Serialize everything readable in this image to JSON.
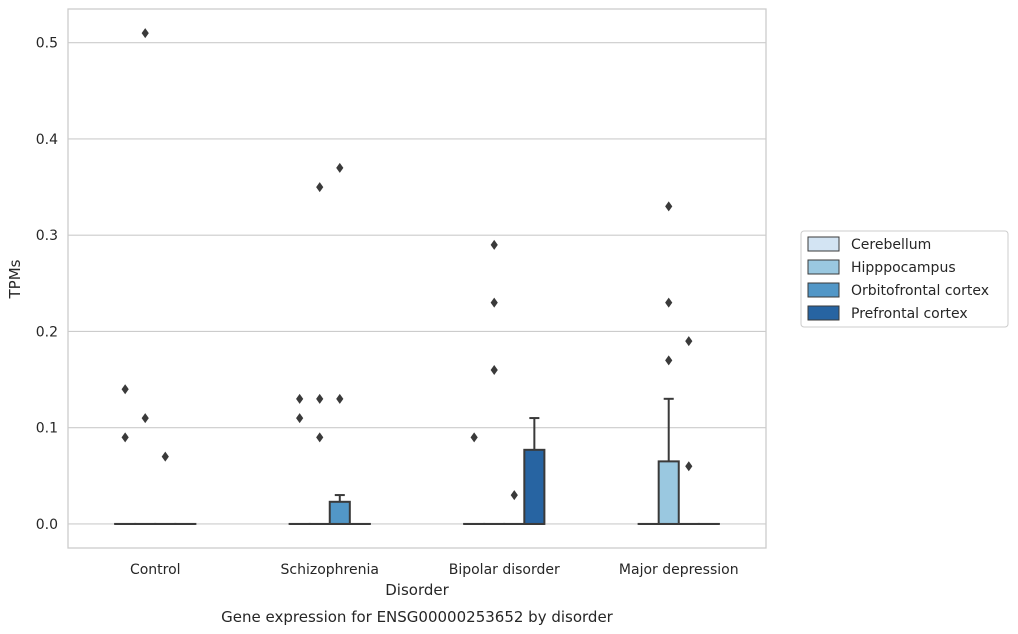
{
  "chart_data": {
    "type": "box",
    "xlabel": "Disorder",
    "ylabel": "TPMs",
    "caption": "Gene expression for ENSG00000253652 by disorder",
    "categories": [
      "Control",
      "Schizophrenia",
      "Bipolar disorder",
      "Major depression"
    ],
    "ylim": [
      -0.025,
      0.535
    ],
    "yticks": [
      0.0,
      0.1,
      0.2,
      0.3,
      0.4,
      0.5
    ],
    "ytick_labels": [
      "0.0",
      "0.1",
      "0.2",
      "0.3",
      "0.4",
      "0.5"
    ],
    "grid": "horizontal",
    "legend_placement": "right",
    "series": [
      {
        "name": "Cerebellum",
        "color": "#d3e4f3",
        "boxes": [
          {
            "q1": 0,
            "median": 0,
            "q3": 0,
            "whisker_low": 0,
            "whisker_high": 0,
            "outliers": [
              0.09,
              0.14
            ]
          },
          {
            "q1": 0,
            "median": 0,
            "q3": 0,
            "whisker_low": 0,
            "whisker_high": 0,
            "outliers": [
              0.11,
              0.13
            ]
          },
          {
            "q1": 0,
            "median": 0,
            "q3": 0,
            "whisker_low": 0,
            "whisker_high": 0,
            "outliers": [
              0.09
            ]
          },
          {
            "q1": 0,
            "median": 0,
            "q3": 0,
            "whisker_low": 0,
            "whisker_high": 0,
            "outliers": []
          }
        ]
      },
      {
        "name": "Hipppocampus",
        "color": "#9ac8e0",
        "boxes": [
          {
            "q1": 0,
            "median": 0,
            "q3": 0,
            "whisker_low": 0,
            "whisker_high": 0,
            "outliers": [
              0.11,
              0.51
            ]
          },
          {
            "q1": 0,
            "median": 0,
            "q3": 0,
            "whisker_low": 0,
            "whisker_high": 0,
            "outliers": [
              0.09,
              0.13,
              0.35
            ]
          },
          {
            "q1": 0,
            "median": 0,
            "q3": 0,
            "whisker_low": 0,
            "whisker_high": 0,
            "outliers": [
              0.16,
              0.23,
              0.29
            ]
          },
          {
            "q1": 0,
            "median": 0,
            "q3": 0.065,
            "whisker_low": 0,
            "whisker_high": 0.13,
            "outliers": [
              0.17,
              0.23,
              0.33
            ]
          }
        ]
      },
      {
        "name": "Orbitofrontal cortex",
        "color": "#5297c7",
        "boxes": [
          {
            "q1": 0,
            "median": 0,
            "q3": 0,
            "whisker_low": 0,
            "whisker_high": 0,
            "outliers": [
              0.07
            ]
          },
          {
            "q1": 0,
            "median": 0,
            "q3": 0.023,
            "whisker_low": 0,
            "whisker_high": 0.03,
            "outliers": [
              0.13,
              0.37
            ]
          },
          {
            "q1": 0,
            "median": 0,
            "q3": 0,
            "whisker_low": 0,
            "whisker_high": 0,
            "outliers": [
              0.03
            ]
          },
          {
            "q1": 0,
            "median": 0,
            "q3": 0,
            "whisker_low": 0,
            "whisker_high": 0,
            "outliers": [
              0.06,
              0.19
            ]
          }
        ]
      },
      {
        "name": "Prefrontal cortex",
        "color": "#2764a2",
        "boxes": [
          {
            "q1": 0,
            "median": 0,
            "q3": 0,
            "whisker_low": 0,
            "whisker_high": 0,
            "outliers": []
          },
          {
            "q1": 0,
            "median": 0,
            "q3": 0,
            "whisker_low": 0,
            "whisker_high": 0,
            "outliers": []
          },
          {
            "q1": 0,
            "median": 0,
            "q3": 0.077,
            "whisker_low": 0,
            "whisker_high": 0.11,
            "outliers": []
          },
          {
            "q1": 0,
            "median": 0,
            "q3": 0,
            "whisker_low": 0,
            "whisker_high": 0,
            "outliers": []
          }
        ]
      }
    ]
  }
}
